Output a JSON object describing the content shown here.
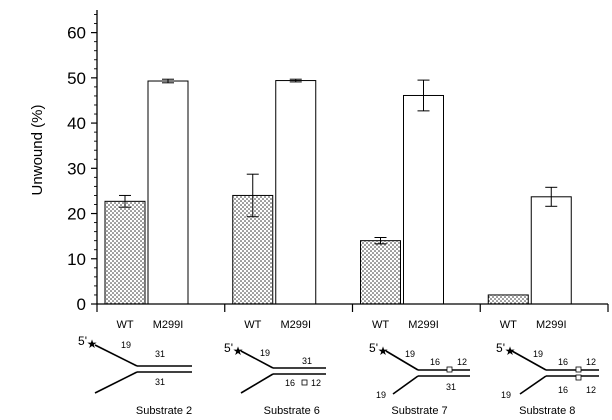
{
  "chart_data": {
    "type": "bar",
    "ylabel": "Unwound (%)",
    "ylim": [
      0,
      65
    ],
    "yticks": [
      0,
      10,
      20,
      30,
      40,
      50,
      60
    ],
    "grid": false,
    "legend": "none",
    "series_labels": [
      "WT",
      "M299I"
    ],
    "groups": [
      {
        "name": "Substrate  2",
        "values": [
          22.7,
          49.3
        ],
        "errors": [
          1.3,
          0.4
        ]
      },
      {
        "name": "Substrate  6",
        "values": [
          24.0,
          49.4
        ],
        "errors": [
          4.7,
          0.3
        ]
      },
      {
        "name": "Substrate  7",
        "values": [
          14.0,
          46.1
        ],
        "errors": [
          0.7,
          3.4
        ]
      },
      {
        "name": "Substrate  8",
        "values": [
          2.0,
          23.7
        ],
        "errors": [
          0.0,
          2.1
        ]
      }
    ],
    "colors": {
      "wt_fill": "#ffffff",
      "wt_dots": "#222222",
      "m299i_fill": "#ffffff",
      "stroke": "#000000"
    }
  },
  "substrate_diagrams": [
    {
      "five_prime": "5'",
      "labels": [
        "19",
        "31",
        "31"
      ]
    },
    {
      "five_prime": "5'",
      "labels": [
        "19",
        "31",
        "16",
        "12"
      ]
    },
    {
      "five_prime": "5'",
      "labels": [
        "19",
        "16",
        "12",
        "19",
        "31"
      ]
    },
    {
      "five_prime": "5'",
      "labels": [
        "19",
        "16",
        "12",
        "19",
        "16",
        "12"
      ]
    }
  ]
}
